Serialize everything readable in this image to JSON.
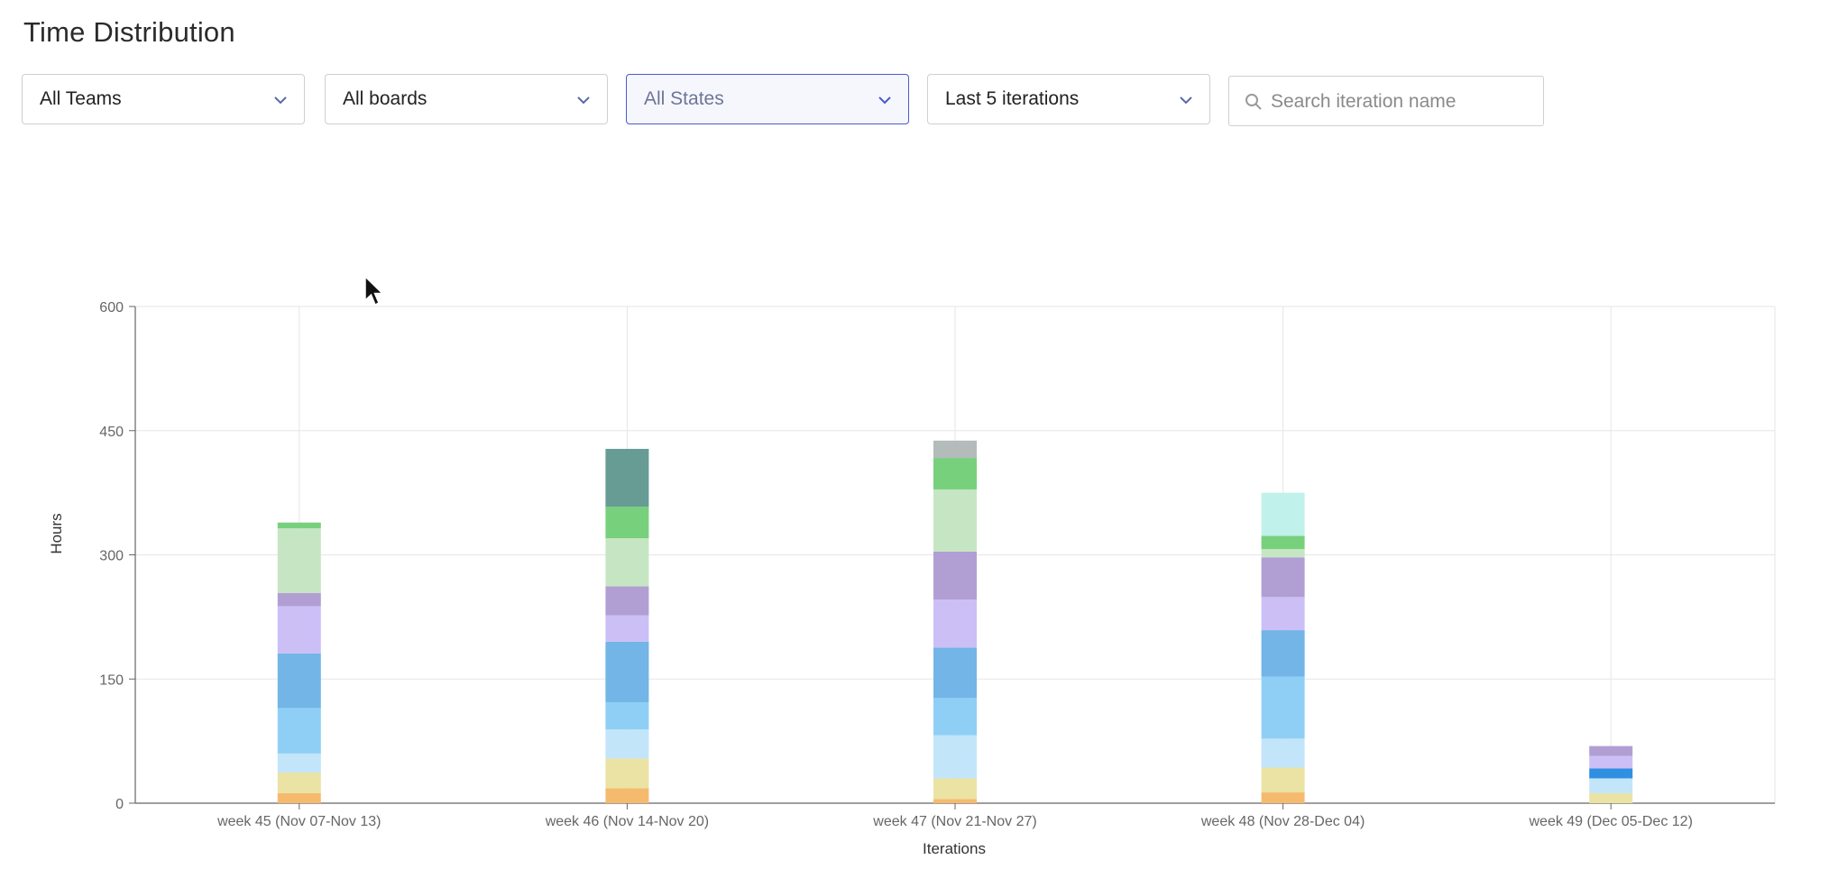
{
  "page_title": "Time Distribution",
  "filters": {
    "teams": "All Teams",
    "boards": "All boards",
    "states": "All States",
    "iterations": "Last 5 iterations",
    "search_placeholder": "Search iteration name"
  },
  "icons": {
    "dropdown": "chevron-down-icon",
    "search": "search-icon",
    "cursor": "mouse-pointer-icon"
  },
  "chart_data": {
    "type": "bar",
    "stacked": true,
    "xlabel": "Iterations",
    "ylabel": "Hours",
    "ylim": [
      0,
      600
    ],
    "yticks": [
      0,
      150,
      300,
      450,
      600
    ],
    "grid": true,
    "categories": [
      "week 45 (Nov 07-Nov 13)",
      "week 46 (Nov 14-Nov 20)",
      "week 47 (Nov 21-Nov 27)",
      "week 48 (Nov 28-Dec 04)",
      "week 49 (Dec 05-Dec 12)"
    ],
    "series": [
      {
        "color": "#f6ba6e",
        "values": [
          12,
          18,
          5,
          13,
          0
        ]
      },
      {
        "color": "#ebe3a4",
        "values": [
          25,
          36,
          25,
          30,
          12
        ]
      },
      {
        "color": "#c2e5f9",
        "values": [
          23,
          35,
          52,
          35,
          18
        ]
      },
      {
        "color": "#90cff5",
        "values": [
          55,
          33,
          45,
          75,
          0
        ]
      },
      {
        "color": "#2f8fe0",
        "values": [
          0,
          0,
          0,
          0,
          12
        ]
      },
      {
        "color": "#72b5e6",
        "values": [
          66,
          73,
          61,
          56,
          0
        ]
      },
      {
        "color": "#cbbff6",
        "values": [
          57,
          32,
          58,
          40,
          15
        ]
      },
      {
        "color": "#b19fd3",
        "values": [
          16,
          35,
          58,
          48,
          12
        ]
      },
      {
        "color": "#c6e6c3",
        "values": [
          78,
          58,
          75,
          10,
          0
        ]
      },
      {
        "color": "#77d07c",
        "values": [
          7,
          38,
          38,
          16,
          0
        ]
      },
      {
        "color": "#c0f1eb",
        "values": [
          0,
          0,
          0,
          52,
          0
        ]
      },
      {
        "color": "#679c95",
        "values": [
          0,
          70,
          0,
          0,
          0
        ]
      },
      {
        "color": "#b3bcbb",
        "values": [
          0,
          0,
          21,
          0,
          0
        ]
      }
    ]
  }
}
